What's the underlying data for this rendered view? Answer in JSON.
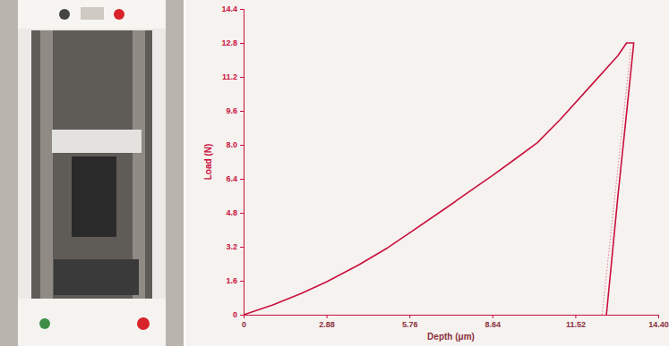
{
  "chart_data": {
    "type": "line",
    "x_label": "Depth (μm)",
    "y_label": "Load (N)",
    "xlim": [
      0,
      14.4
    ],
    "ylim": [
      0,
      14.4
    ],
    "xticks": [
      0,
      2.88,
      5.76,
      8.64,
      11.52,
      {
        "value": 14.4,
        "label": "14.40"
      }
    ],
    "yticks": [
      0,
      1.6,
      3.2,
      4.8,
      6.4,
      {
        "value": 8,
        "label": "8.0"
      },
      9.6,
      11.2,
      12.8,
      14.4
    ],
    "grid": false,
    "series": [
      {
        "color": "#c8103c",
        "line_style": "solid",
        "x": [
          0,
          1.0,
          2.0,
          2.88,
          4.0,
          5.0,
          5.76,
          7.0,
          8.0,
          8.64,
          9.5,
          10.2,
          11.0,
          12.0,
          13.0,
          13.3,
          13.55,
          13.3,
          13.0,
          12.6
        ],
        "values": [
          0,
          0.45,
          1.0,
          1.55,
          2.35,
          3.15,
          3.85,
          5.0,
          5.95,
          6.55,
          7.4,
          8.1,
          9.2,
          10.7,
          12.2,
          12.8,
          12.8,
          9.5,
          5.6,
          0
        ]
      },
      {
        "color": "#e07a90",
        "line_style": "dotted",
        "x": [
          12.45,
          13.45
        ],
        "values": [
          0,
          12.6
        ]
      }
    ]
  }
}
